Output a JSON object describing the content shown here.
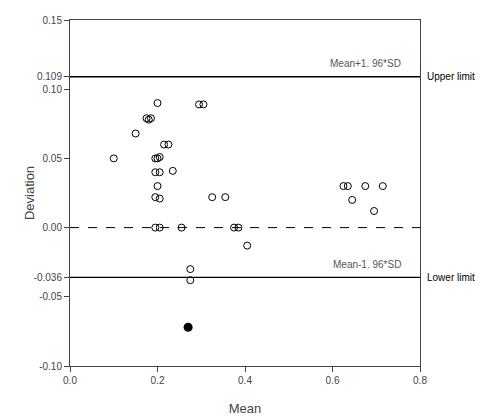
{
  "chart_data": {
    "type": "scatter",
    "xlabel": "Mean",
    "ylabel": "Deviation",
    "xlim": [
      0.0,
      0.8
    ],
    "ylim": [
      -0.1,
      0.15
    ],
    "xticks": [
      {
        "value": 0.0,
        "label": "0.0"
      },
      0.2,
      0.4,
      0.6,
      0.8
    ],
    "yticks": [
      {
        "value": -0.1,
        "label": "-0.10"
      },
      -0.05,
      -0.036,
      {
        "value": 0.0,
        "label": "0.00"
      },
      0.05,
      {
        "value": 0.1,
        "label": "0.10"
      },
      0.109,
      0.15
    ],
    "grid": false,
    "series": [
      {
        "marker": "open_circle",
        "color": "#000000",
        "x": [
          0.1,
          0.15,
          0.175,
          0.18,
          0.185,
          0.2,
          0.195,
          0.2,
          0.205,
          0.195,
          0.205,
          0.2,
          0.195,
          0.205,
          0.195,
          0.205,
          0.215,
          0.225,
          0.235,
          0.255,
          0.275,
          0.275,
          0.295,
          0.305,
          0.325,
          0.355,
          0.375,
          0.385,
          0.405,
          0.625,
          0.635,
          0.645,
          0.675,
          0.695,
          0.715
        ],
        "values": [
          0.05,
          0.068,
          0.079,
          0.078,
          0.079,
          0.09,
          0.05,
          0.05,
          0.051,
          0.04,
          0.04,
          0.03,
          0.022,
          0.021,
          0.0,
          0.0,
          0.06,
          0.06,
          0.041,
          0.0,
          -0.03,
          -0.038,
          0.089,
          0.089,
          0.022,
          0.022,
          0.0,
          0.0,
          -0.013,
          0.03,
          0.03,
          0.02,
          0.03,
          0.012,
          0.03
        ]
      },
      {
        "marker": "filled_circle",
        "color": "#000000",
        "x": [
          0.27
        ],
        "values": [
          -0.072
        ]
      }
    ],
    "lines": [
      {
        "y": 0.109,
        "label": "Upper limit",
        "line_style": "solid",
        "color": "#000000"
      },
      {
        "y": -0.036,
        "label": "Lower limit",
        "line_style": "solid",
        "color": "#000000"
      },
      {
        "y": 0.0,
        "line_style": "dash",
        "color": "#000000"
      }
    ],
    "annotations": [
      {
        "x": 0.76,
        "y": 0.113,
        "text": "Mean+1. 96*SD",
        "color": "#555555"
      },
      {
        "x": 0.76,
        "y": -0.032,
        "text": "Mean-1. 96*SD",
        "color": "#555555"
      }
    ]
  }
}
